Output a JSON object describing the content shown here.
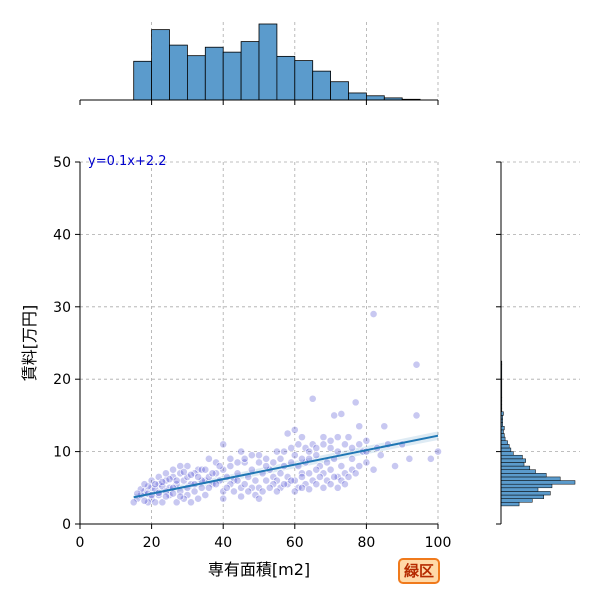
{
  "chart_data": {
    "type": "scatter",
    "xlabel": "専有面積[m2]",
    "ylabel": "賃料[万円]",
    "xlim": [
      0,
      100
    ],
    "ylim": [
      0,
      50
    ],
    "x_ticks": [
      0,
      20,
      40,
      60,
      80,
      100
    ],
    "y_ticks": [
      0,
      10,
      20,
      30,
      40,
      50
    ],
    "grid": true,
    "annotation": "y=0.1x+2.2",
    "badge": "緑区",
    "colors": {
      "points": "#3b3bcc",
      "regression_line": "#1f77b4",
      "histogram_fill": "#5b9bcc",
      "annotation_text": "#0000cc",
      "badge_border": "#f07a1c",
      "badge_fill": "#ffd9a8",
      "badge_text": "#b52a00"
    },
    "regression": {
      "slope": 0.1,
      "intercept": 2.2,
      "x_range": [
        15,
        100
      ]
    },
    "points": [
      [
        82,
        29
      ],
      [
        94,
        22
      ],
      [
        77,
        16.8
      ],
      [
        65,
        17.3
      ],
      [
        71,
        15
      ],
      [
        73,
        15.2
      ],
      [
        94,
        15
      ],
      [
        78,
        13.5
      ],
      [
        85,
        13.5
      ],
      [
        60,
        13
      ],
      [
        58,
        12.5
      ],
      [
        62,
        12
      ],
      [
        68,
        12
      ],
      [
        75,
        12
      ],
      [
        80,
        11.5
      ],
      [
        86,
        11
      ],
      [
        90,
        11
      ],
      [
        100,
        10
      ],
      [
        98,
        9
      ],
      [
        40,
        11
      ],
      [
        45,
        10
      ],
      [
        50,
        9.5
      ],
      [
        55,
        10
      ],
      [
        52,
        9
      ],
      [
        65,
        11
      ],
      [
        70,
        10.5
      ],
      [
        72,
        10
      ],
      [
        76,
        9
      ],
      [
        79,
        10
      ],
      [
        84,
        9.5
      ],
      [
        88,
        8
      ],
      [
        92,
        9
      ],
      [
        36,
        9
      ],
      [
        30,
        8
      ],
      [
        33,
        7.5
      ],
      [
        38,
        8.5
      ],
      [
        42,
        8
      ],
      [
        46,
        8.5
      ],
      [
        48,
        7.5
      ],
      [
        44,
        7
      ],
      [
        41,
        6.5
      ],
      [
        35,
        6
      ],
      [
        28,
        7
      ],
      [
        26,
        6.5
      ],
      [
        24,
        6
      ],
      [
        22,
        5.5
      ],
      [
        20,
        5
      ],
      [
        18,
        4.5
      ],
      [
        16,
        3.5
      ],
      [
        15,
        3
      ],
      [
        17,
        4
      ],
      [
        19,
        4.2
      ],
      [
        21,
        4.8
      ],
      [
        23,
        5.2
      ],
      [
        25,
        5
      ],
      [
        27,
        5.5
      ],
      [
        29,
        6
      ],
      [
        31,
        5.5
      ],
      [
        32,
        4.5
      ],
      [
        34,
        5
      ],
      [
        37,
        5.5
      ],
      [
        39,
        6
      ],
      [
        43,
        6
      ],
      [
        47,
        6.5
      ],
      [
        49,
        6
      ],
      [
        51,
        7
      ],
      [
        53,
        7.5
      ],
      [
        54,
        6.5
      ],
      [
        56,
        7
      ],
      [
        57,
        8
      ],
      [
        59,
        8.5
      ],
      [
        61,
        8
      ],
      [
        63,
        8.5
      ],
      [
        64,
        9
      ],
      [
        66,
        9.5
      ],
      [
        67,
        8
      ],
      [
        69,
        8.5
      ],
      [
        71,
        9
      ],
      [
        73,
        8
      ],
      [
        58,
        6.5
      ],
      [
        62,
        7
      ],
      [
        55,
        6
      ],
      [
        50,
        5
      ],
      [
        45,
        5
      ],
      [
        40,
        4.5
      ],
      [
        35,
        4
      ],
      [
        30,
        4
      ],
      [
        25,
        4
      ],
      [
        20,
        3.5
      ],
      [
        22,
        4
      ],
      [
        24,
        4.5
      ],
      [
        26,
        5
      ],
      [
        28,
        4.5
      ],
      [
        30,
        5
      ],
      [
        32,
        5.5
      ],
      [
        34,
        6
      ],
      [
        36,
        6.5
      ],
      [
        38,
        7
      ],
      [
        40,
        7.5
      ],
      [
        42,
        5.5
      ],
      [
        44,
        6
      ],
      [
        46,
        5.5
      ],
      [
        48,
        5
      ],
      [
        52,
        6
      ],
      [
        54,
        5.5
      ],
      [
        56,
        5
      ],
      [
        58,
        5.5
      ],
      [
        60,
        6
      ],
      [
        62,
        6.5
      ],
      [
        64,
        7
      ],
      [
        66,
        7.5
      ],
      [
        68,
        7
      ],
      [
        70,
        7.5
      ],
      [
        72,
        6.5
      ],
      [
        74,
        7
      ],
      [
        76,
        7.5
      ],
      [
        78,
        8
      ],
      [
        80,
        8.5
      ],
      [
        82,
        7.5
      ],
      [
        27,
        3
      ],
      [
        29,
        3.5
      ],
      [
        31,
        3
      ],
      [
        33,
        3.5
      ],
      [
        23,
        3
      ],
      [
        21,
        3
      ],
      [
        19,
        3
      ],
      [
        18,
        3.2
      ],
      [
        20,
        6
      ],
      [
        22,
        6.5
      ],
      [
        24,
        7
      ],
      [
        26,
        7.5
      ],
      [
        28,
        8
      ],
      [
        30,
        6.5
      ],
      [
        32,
        7
      ],
      [
        34,
        7.5
      ],
      [
        36,
        5
      ],
      [
        38,
        5.5
      ],
      [
        41,
        5
      ],
      [
        43,
        4.5
      ],
      [
        47,
        4.5
      ],
      [
        49,
        4
      ],
      [
        51,
        4.5
      ],
      [
        53,
        5
      ],
      [
        55,
        4.5
      ],
      [
        57,
        5.5
      ],
      [
        59,
        6
      ],
      [
        61,
        5
      ],
      [
        63,
        5.5
      ],
      [
        65,
        6
      ],
      [
        67,
        6.5
      ],
      [
        69,
        6
      ],
      [
        71,
        6.5
      ],
      [
        73,
        6
      ],
      [
        75,
        6.5
      ],
      [
        77,
        7
      ],
      [
        57,
        10
      ],
      [
        59,
        10.5
      ],
      [
        61,
        11
      ],
      [
        63,
        10.5
      ],
      [
        46,
        9
      ],
      [
        48,
        9.5
      ],
      [
        50,
        8.5
      ],
      [
        52,
        8
      ],
      [
        54,
        8.5
      ],
      [
        56,
        9
      ],
      [
        44,
        8.5
      ],
      [
        42,
        9
      ],
      [
        39,
        8
      ],
      [
        37,
        7
      ],
      [
        35,
        7.5
      ],
      [
        33,
        6.5
      ],
      [
        31,
        6.8
      ],
      [
        29,
        7.2
      ],
      [
        27,
        6
      ],
      [
        25,
        6.2
      ],
      [
        23,
        5.8
      ],
      [
        21,
        5.5
      ],
      [
        19,
        5.2
      ],
      [
        17,
        4.8
      ],
      [
        16,
        4.2
      ],
      [
        18,
        5.5
      ],
      [
        20,
        4
      ],
      [
        22,
        4.3
      ],
      [
        24,
        3.8
      ],
      [
        26,
        4.2
      ],
      [
        28,
        3.8
      ],
      [
        66,
        5.5
      ],
      [
        68,
        5
      ],
      [
        70,
        5.5
      ],
      [
        72,
        5
      ],
      [
        74,
        5.5
      ],
      [
        60,
        4.5
      ],
      [
        62,
        5
      ],
      [
        64,
        4.8
      ],
      [
        50,
        3.5
      ],
      [
        45,
        3.8
      ],
      [
        40,
        3.5
      ],
      [
        60,
        9.5
      ],
      [
        62,
        9
      ],
      [
        64,
        10
      ],
      [
        66,
        10.5
      ],
      [
        68,
        11
      ],
      [
        70,
        11.5
      ],
      [
        72,
        12
      ],
      [
        74,
        11
      ],
      [
        76,
        10.5
      ],
      [
        78,
        11
      ],
      [
        80,
        10
      ],
      [
        83,
        10.5
      ]
    ],
    "top_hist": {
      "bin_edges": [
        15,
        20,
        25,
        30,
        35,
        40,
        45,
        50,
        55,
        60,
        65,
        70,
        75,
        80,
        85,
        90,
        95
      ],
      "counts": [
        55,
        100,
        78,
        63,
        75,
        68,
        83,
        108,
        62,
        56,
        41,
        26,
        10,
        6,
        3,
        1
      ]
    },
    "right_hist": {
      "bin_edges": [
        2.5,
        3,
        3.5,
        4,
        4.5,
        5,
        5.5,
        6,
        6.5,
        7,
        7.5,
        8,
        8.5,
        9,
        9.5,
        10,
        10.5,
        11,
        11.5,
        12,
        12.5,
        13,
        13.5,
        14,
        14.5,
        15,
        15.5,
        16,
        16.5,
        17,
        17.5,
        22,
        22.5
      ],
      "counts": [
        22,
        38,
        52,
        60,
        45,
        62,
        90,
        72,
        55,
        42,
        35,
        28,
        30,
        26,
        15,
        12,
        10,
        8,
        5,
        4,
        3,
        4,
        2,
        2,
        2,
        3,
        1,
        1,
        1,
        1,
        1,
        1
      ]
    }
  }
}
